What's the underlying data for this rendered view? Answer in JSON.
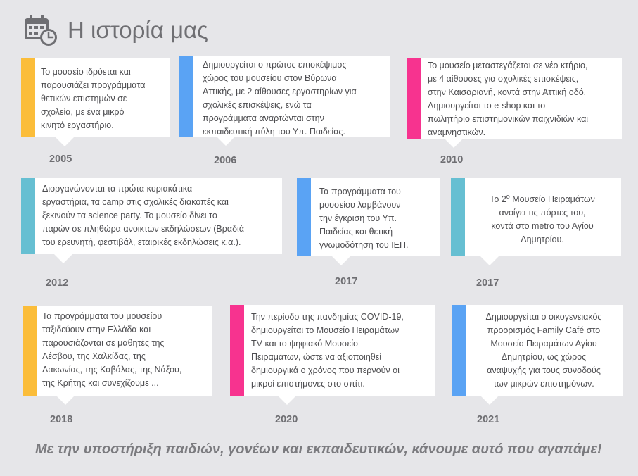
{
  "title": "Η ιστορία μας",
  "icon": "calendar-clock-icon",
  "colors": {
    "yellow": "#fbbd3a",
    "blue": "#5aa3f4",
    "pink": "#f7338f",
    "teal": "#66bfd2"
  },
  "timeline": [
    {
      "year": "2005",
      "color": "#fbbd3a",
      "lines": [
        "Το μουσείο ιδρύεται και",
        "παρουσιάζει προγράμματα",
        "θετικών επιστημών σε",
        "σχολεία, με ένα μικρό",
        "κινητό εργαστήριο."
      ]
    },
    {
      "year": "2006",
      "color": "#5aa3f4",
      "lines": [
        "Δημιουργείται ο πρώτος επισκέψιμος",
        "χώρος του μουσείου στον Βύρωνα",
        "Αττικής, με 2 αίθουσες εργαστηρίων για",
        "σχολικές επισκέψεις, ενώ τα",
        "προγράμματα αναρτώνται στην",
        "εκπαιδευτική πύλη του Υπ. Παιδείας."
      ]
    },
    {
      "year": "2010",
      "color": "#f7338f",
      "lines": [
        "Το μουσείο μεταστεγάζεται σε νέο κτήριο,",
        "με 4 αίθουσες για σχολικές επισκέψεις,",
        "στην Καισαριανή, κοντά στην Αττική οδό.",
        "Δημιουργείται το e-shop και το",
        "πωλητήριο επιστημονικών παιχνιδιών και",
        "αναμνηστικών."
      ]
    },
    {
      "year": "2012",
      "color": "#66bfd2",
      "lines": [
        "Διοργανώνονται τα πρώτα κυριακάτικα",
        "εργαστήρια, τα camp στις σχολικές διακοπές και",
        "ξεκινούν τα science party. Το μουσείο δίνει το",
        "παρών σε πληθώρα ανοικτών εκδηλώσεων (Βραδιά",
        "του ερευνητή, φεστιβάλ, εταιρικές εκδηλώσεις κ.α.)."
      ]
    },
    {
      "year": "2017",
      "color": "#5aa3f4",
      "lines": [
        "Τα προγράμματα του",
        "μουσείου λαμβάνουν",
        "την  έγκριση του Υπ.",
        "Παιδείας και θετική",
        "γνωμοδότηση του ΙΕΠ."
      ]
    },
    {
      "year": "2017",
      "color": "#66bfd2",
      "lines": [
        "Το 2ο Μουσείο Πειραμάτων",
        "ανοίγει τις πόρτες του,",
        "κοντά στο metro του Αγίου",
        "Δημητρίου."
      ]
    },
    {
      "year": "2018",
      "color": "#fbbd3a",
      "lines": [
        "Τα προγράμματα του μουσείου",
        "ταξιδεύουν στην Ελλάδα και",
        "παρουσιάζονται σε μαθητές της",
        "Λέσβου, της Χαλκίδας, της",
        "Λακωνίας, της Καβάλας, της Νάξου,",
        "της Κρήτης και συνεχίζουμε ..."
      ]
    },
    {
      "year": "2020",
      "color": "#f7338f",
      "lines": [
        "Την περίοδο της πανδημίας COVID-19,",
        "δημιουργείται το Μουσείο Πειραμάτων",
        "TV και το ψηφιακό Μουσείο",
        "Πειραμάτων, ώστε να  αξιοποιηθεί",
        "δημιουργικά ο χρόνος που περνούν οι",
        "μικροί επιστήμονες στο σπίτι."
      ]
    },
    {
      "year": "2021",
      "color": "#5aa3f4",
      "lines": [
        "Δημιουργείται ο οικογενειακός",
        "προορισμός Family Café στο",
        "Μουσείο Πειραμάτων Αγίου",
        "Δημητρίου, ως χώρος",
        "αναψυχής για τους συνοδούς",
        "των μικρών επιστημόνων."
      ]
    }
  ],
  "footer": "Με την υποστήριξη παιδιών, γονέων και εκπαιδευτικών, κάνουμε αυτό που αγαπάμε!"
}
